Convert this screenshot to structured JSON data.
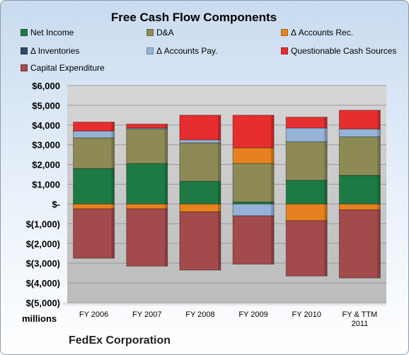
{
  "chart_data": {
    "type": "bar",
    "stacked": true,
    "title": "Free Cash Flow Components",
    "ylabel": "millions",
    "subtitle": "FedEx Corporation",
    "categories": [
      "FY 2006",
      "FY 2007",
      "FY 2008",
      "FY 2009",
      "FY 2010",
      "FY & TTM 2011"
    ],
    "yticks": [
      "$6,000",
      "$5,000",
      "$4,000",
      "$3,000",
      "$2,000",
      "$1,000",
      "$-",
      "$(1,000)",
      "$(2,000)",
      "$(3,000)",
      "$(4,000)",
      "$(5,000)"
    ],
    "ylim": [
      -5000,
      6000
    ],
    "grid": true,
    "legend": "top",
    "series": [
      {
        "name": "Net Income",
        "color": "#1e7a45",
        "values": [
          1800,
          2050,
          1150,
          100,
          1200,
          1450
        ]
      },
      {
        "name": "D&A",
        "color": "#8e8a56",
        "values": [
          1550,
          1750,
          1950,
          1950,
          1950,
          1950
        ]
      },
      {
        "name": "Δ Accounts Rec.",
        "color": "#e5821f",
        "values": [
          -250,
          -250,
          -400,
          800,
          -850,
          -300
        ]
      },
      {
        "name": "Δ Inventories",
        "color": "#2e4a66",
        "values": [
          0,
          0,
          0,
          0,
          0,
          0
        ]
      },
      {
        "name": "Δ Accounts Pay.",
        "color": "#95b3d7",
        "values": [
          350,
          50,
          150,
          -600,
          700,
          400
        ]
      },
      {
        "name": "Questionable Cash Sources",
        "color": "#e62e2e",
        "values": [
          450,
          200,
          1250,
          1650,
          550,
          950
        ]
      },
      {
        "name": "Capital Expenditure",
        "color": "#a24a4c",
        "values": [
          -2500,
          -2900,
          -2950,
          -2450,
          -2800,
          -3450
        ]
      }
    ]
  }
}
